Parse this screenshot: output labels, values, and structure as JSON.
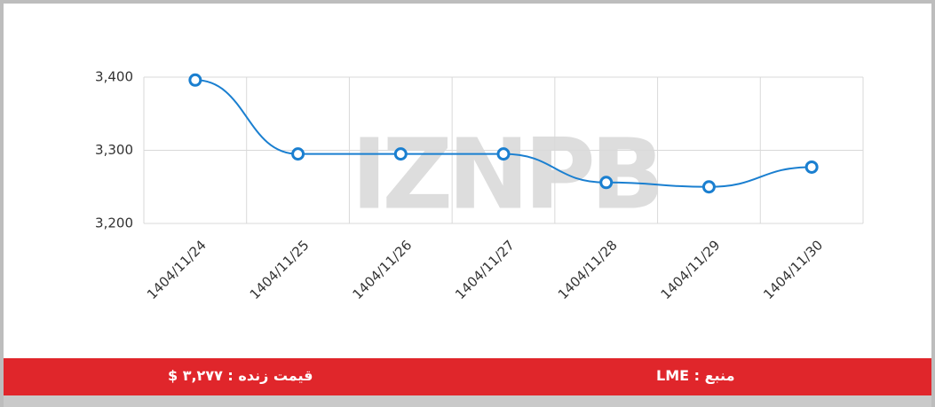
{
  "chart_data": {
    "type": "line",
    "categories": [
      "1404/11/24",
      "1404/11/25",
      "1404/11/26",
      "1404/11/27",
      "1404/11/28",
      "1404/11/29",
      "1404/11/30"
    ],
    "series": [
      {
        "name": "LME",
        "color": "#1a7fd0",
        "values": [
          3396,
          3295,
          3295,
          3295,
          3256,
          3250,
          3277
        ]
      }
    ],
    "ylim": [
      3200,
      3400
    ],
    "yticks": [
      {
        "value": 3200,
        "label": "3,200"
      },
      {
        "value": 3300,
        "label": "3,300"
      },
      {
        "value": 3400,
        "label": "3,400"
      }
    ],
    "grid": true,
    "watermark": "IZNPB"
  },
  "footer": {
    "live_price": "قیمت زنده : ۳,۲۷۷ $",
    "source": "منبع : LME"
  }
}
